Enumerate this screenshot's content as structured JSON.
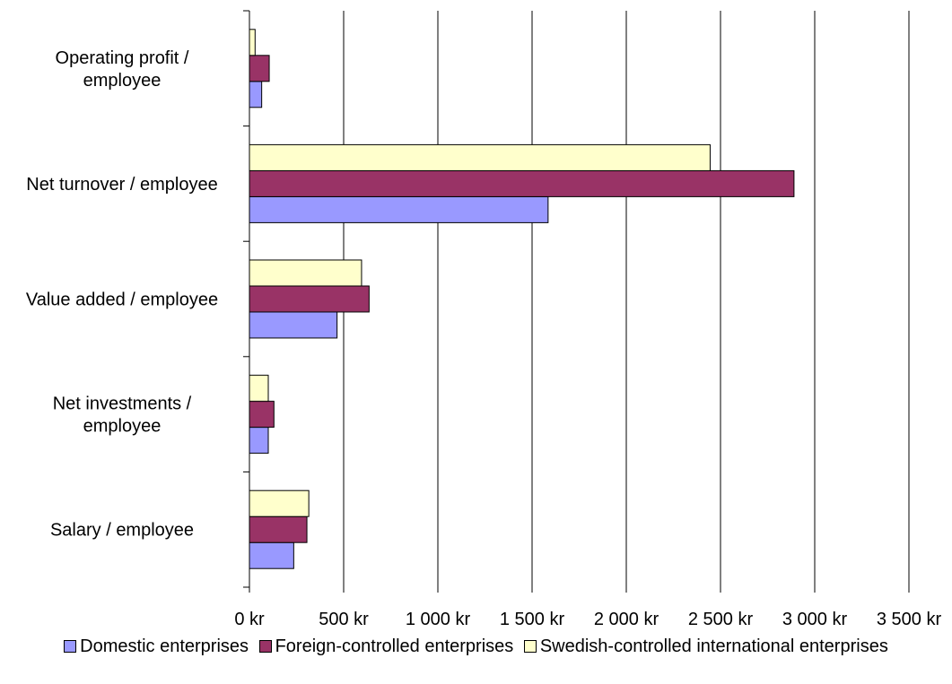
{
  "chart_data": {
    "type": "bar",
    "orientation": "horizontal",
    "title": "",
    "xlabel": "",
    "ylabel": "",
    "categories": [
      "Operating profit / employee",
      "Net turnover / employee",
      "Value added / employee",
      "Net investments / employee",
      "Salary / employee"
    ],
    "category_lines": [
      [
        "Operating profit /",
        "employee"
      ],
      [
        "Net turnover / employee"
      ],
      [
        "Value added / employee"
      ],
      [
        "Net investments /",
        "employee"
      ],
      [
        "Salary / employee"
      ]
    ],
    "series": [
      {
        "name": "Domestic enterprises",
        "color": "#9999ff",
        "values": [
          65,
          1585,
          465,
          100,
          235
        ]
      },
      {
        "name": "Foreign-controlled enterprises",
        "color": "#993366",
        "values": [
          105,
          2890,
          635,
          130,
          305
        ]
      },
      {
        "name": "Swedish-controlled international enterprises",
        "color": "#ffffcc",
        "values": [
          30,
          2445,
          595,
          100,
          315
        ]
      }
    ],
    "xlim": [
      0,
      3500
    ],
    "xticks": [
      0,
      500,
      1000,
      1500,
      2000,
      2500,
      3000,
      3500
    ],
    "xtick_labels": [
      "0 kr",
      "500 kr",
      "1 000 kr",
      "1 500 kr",
      "2 000 kr",
      "2 500 kr",
      "3 000 kr",
      "3 500 kr"
    ],
    "grid": true,
    "legend_position": "bottom"
  }
}
